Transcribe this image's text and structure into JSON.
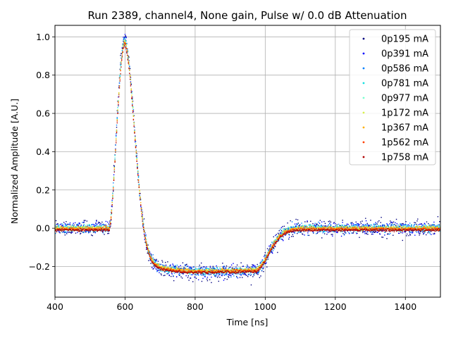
{
  "chart_data": {
    "type": "scatter",
    "title": "Run 2389, channel4, None gain, Pulse w/ 0.0 dB Attenuation",
    "xlabel": "Time [ns]",
    "ylabel": "Normalized Amplitude [A.U.]",
    "xlim": [
      400,
      1500
    ],
    "ylim": [
      -0.36,
      1.06
    ],
    "xticks": [
      400,
      600,
      800,
      1000,
      1200,
      1400
    ],
    "xtick_labels": [
      "400",
      "600",
      "800",
      "1000",
      "1200",
      "1400"
    ],
    "yticks": [
      -0.2,
      0.0,
      0.2,
      0.4,
      0.6,
      0.8,
      1.0
    ],
    "ytick_labels": [
      "−0.2",
      "0.0",
      "0.2",
      "0.4",
      "0.6",
      "0.8",
      "1.0"
    ],
    "grid": true,
    "legend_position": "top-right",
    "pulse_shape": {
      "baseline": 0.0,
      "rise_start": 555,
      "peak_time": 600,
      "peak_value": 1.0,
      "undershoot_time": 800,
      "undershoot_value": -0.23,
      "recovery_start": 970,
      "recovery_end": 1100
    },
    "series": [
      {
        "name": "0p195 mA",
        "color": "#00007f",
        "noise": 0.03,
        "offset": 0.0
      },
      {
        "name": "0p391 mA",
        "color": "#0000ff",
        "noise": 0.022,
        "offset": 0.0
      },
      {
        "name": "0p586 mA",
        "color": "#0080ff",
        "noise": 0.016,
        "offset": 0.0
      },
      {
        "name": "0p781 mA",
        "color": "#15e0e0",
        "noise": 0.012,
        "offset": 0.0
      },
      {
        "name": "0p977 mA",
        "color": "#7cffcf",
        "noise": 0.009,
        "offset": 0.0
      },
      {
        "name": "1p172 mA",
        "color": "#d8f050",
        "noise": 0.007,
        "offset": 0.0
      },
      {
        "name": "1p367 mA",
        "color": "#ffb000",
        "noise": 0.006,
        "offset": 0.0
      },
      {
        "name": "1p562 mA",
        "color": "#ff4000",
        "noise": 0.005,
        "offset": -0.005
      },
      {
        "name": "1p758 mA",
        "color": "#b00000",
        "noise": 0.004,
        "offset": -0.01
      }
    ]
  }
}
